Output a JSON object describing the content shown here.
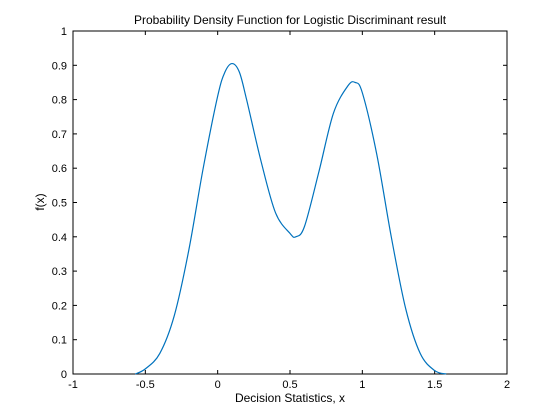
{
  "chart_data": {
    "type": "line",
    "title": "Probability Density Function for Logistic Discriminant result",
    "xlabel": "Decision Statistics, x",
    "ylabel": "f(x)",
    "xlim": [
      -1,
      2
    ],
    "ylim": [
      0,
      1
    ],
    "xticks": [
      "-1",
      "-0.5",
      "0",
      "0.5",
      "1",
      "1.5",
      "2"
    ],
    "yticks": [
      "0",
      "0.1",
      "0.2",
      "0.3",
      "0.4",
      "0.5",
      "0.6",
      "0.7",
      "0.8",
      "0.9",
      "1"
    ],
    "grid": false,
    "series": [
      {
        "color": "#0072bd",
        "x": [
          -0.57,
          -0.5,
          -0.4,
          -0.3,
          -0.2,
          -0.1,
          0.0,
          0.05,
          0.1,
          0.15,
          0.2,
          0.3,
          0.4,
          0.5,
          0.54,
          0.6,
          0.7,
          0.8,
          0.9,
          0.95,
          1.0,
          1.1,
          1.2,
          1.3,
          1.4,
          1.5,
          1.58
        ],
        "y": [
          0.0,
          0.015,
          0.06,
          0.17,
          0.36,
          0.6,
          0.81,
          0.88,
          0.905,
          0.88,
          0.8,
          0.62,
          0.47,
          0.41,
          0.4,
          0.43,
          0.59,
          0.76,
          0.84,
          0.85,
          0.82,
          0.64,
          0.4,
          0.19,
          0.06,
          0.01,
          0.0
        ]
      }
    ]
  }
}
